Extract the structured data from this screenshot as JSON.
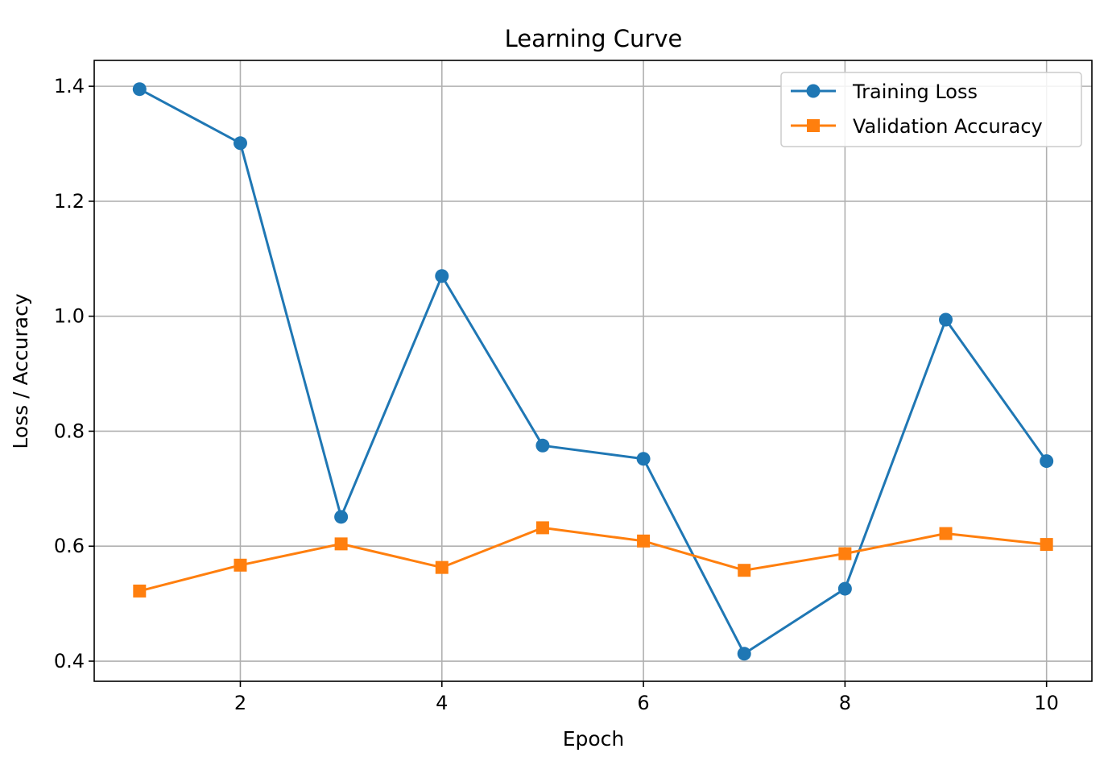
{
  "chart_data": {
    "type": "line",
    "title": "Learning Curve",
    "xlabel": "Epoch",
    "ylabel": "Loss / Accuracy",
    "xlim": [
      0.55,
      10.45
    ],
    "ylim": [
      0.365,
      1.445
    ],
    "x": [
      1,
      2,
      3,
      4,
      5,
      6,
      7,
      8,
      9,
      10
    ],
    "xticks": [
      2,
      4,
      6,
      8,
      10
    ],
    "xtick_labels": [
      "2",
      "4",
      "6",
      "8",
      "10"
    ],
    "yticks": [
      0.4,
      0.6,
      0.8,
      1.0,
      1.2,
      1.4
    ],
    "ytick_labels": [
      "0.4",
      "0.6",
      "0.8",
      "1.0",
      "1.2",
      "1.4"
    ],
    "grid": true,
    "legend_position": "top-right",
    "series": [
      {
        "name": "Training Loss",
        "color": "#1f77b4",
        "marker": "circle",
        "values": [
          1.395,
          1.301,
          0.651,
          1.07,
          0.775,
          0.752,
          0.413,
          0.526,
          0.994,
          0.748
        ]
      },
      {
        "name": "Validation Accuracy",
        "color": "#ff7f0e",
        "marker": "square",
        "values": [
          0.522,
          0.567,
          0.604,
          0.563,
          0.632,
          0.609,
          0.558,
          0.587,
          0.622,
          0.603
        ]
      }
    ]
  }
}
